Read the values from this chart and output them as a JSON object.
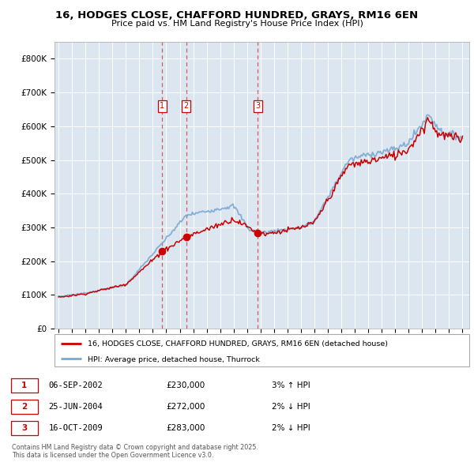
{
  "title": "16, HODGES CLOSE, CHAFFORD HUNDRED, GRAYS, RM16 6EN",
  "subtitle": "Price paid vs. HM Land Registry's House Price Index (HPI)",
  "legend_line1": "16, HODGES CLOSE, CHAFFORD HUNDRED, GRAYS, RM16 6EN (detached house)",
  "legend_line2": "HPI: Average price, detached house, Thurrock",
  "footer": "Contains HM Land Registry data © Crown copyright and database right 2025.\nThis data is licensed under the Open Government Licence v3.0.",
  "transactions": [
    {
      "num": 1,
      "date": "06-SEP-2002",
      "date_val": 2002.69,
      "price": 230000,
      "pct": "3%",
      "dir": "↑"
    },
    {
      "num": 2,
      "date": "25-JUN-2004",
      "date_val": 2004.48,
      "price": 272000,
      "pct": "2%",
      "dir": "↓"
    },
    {
      "num": 3,
      "date": "16-OCT-2009",
      "date_val": 2009.79,
      "price": 283000,
      "pct": "2%",
      "dir": "↓"
    }
  ],
  "price_color": "#cc0000",
  "hpi_color": "#7aa8d2",
  "background_color": "#dce6f0",
  "ylim": [
    0,
    850000
  ],
  "yticks": [
    0,
    100000,
    200000,
    300000,
    400000,
    500000,
    600000,
    700000,
    800000
  ],
  "xlim_start": 1994.7,
  "xlim_end": 2025.5
}
